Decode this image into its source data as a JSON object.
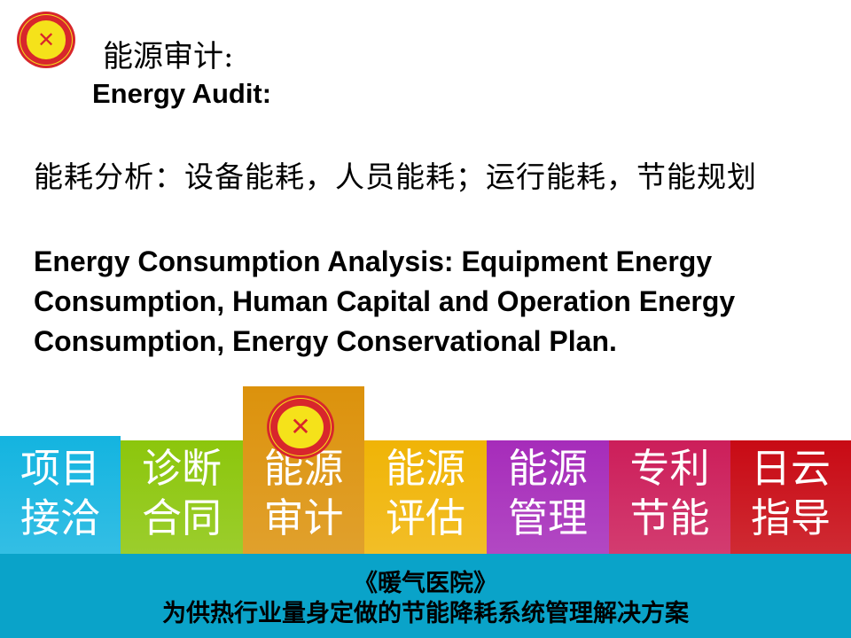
{
  "logo": {
    "text_ring": "HOSPITAL OF HEATING SYSTEM",
    "text_cn": "暖气医院"
  },
  "heading": {
    "cn": "能源审计:",
    "en": "Energy Audit:"
  },
  "body": {
    "cn": "能耗分析：设备能耗，人员能耗；运行能耗，节能规划",
    "en": "Energy Consumption Analysis: Equipment Energy Consumption, Human Capital and Operation Energy Consumption, Energy Conservational Plan."
  },
  "tabs": [
    {
      "line1": "项目",
      "line2": "接洽",
      "color": "#14b4e0",
      "active": false
    },
    {
      "line1": "诊断",
      "line2": "合同",
      "color": "#8cc60c",
      "active": false
    },
    {
      "line1": "能源",
      "line2": "审计",
      "color": "#dc920c",
      "active": true
    },
    {
      "line1": "能源",
      "line2": "评估",
      "color": "#f0b406",
      "active": false
    },
    {
      "line1": "能源",
      "line2": "管理",
      "color": "#a62cba",
      "active": false
    },
    {
      "line1": "专利",
      "line2": "节能",
      "color": "#cc1e5a",
      "active": false
    },
    {
      "line1": "日云",
      "line2": "指导",
      "color": "#c80a14",
      "active": false
    }
  ],
  "footer": {
    "line1": "《暖气医院》",
    "line2": "为供热行业量身定做的节能降耗系统管理解决方案",
    "color": "#0aa3c9"
  }
}
